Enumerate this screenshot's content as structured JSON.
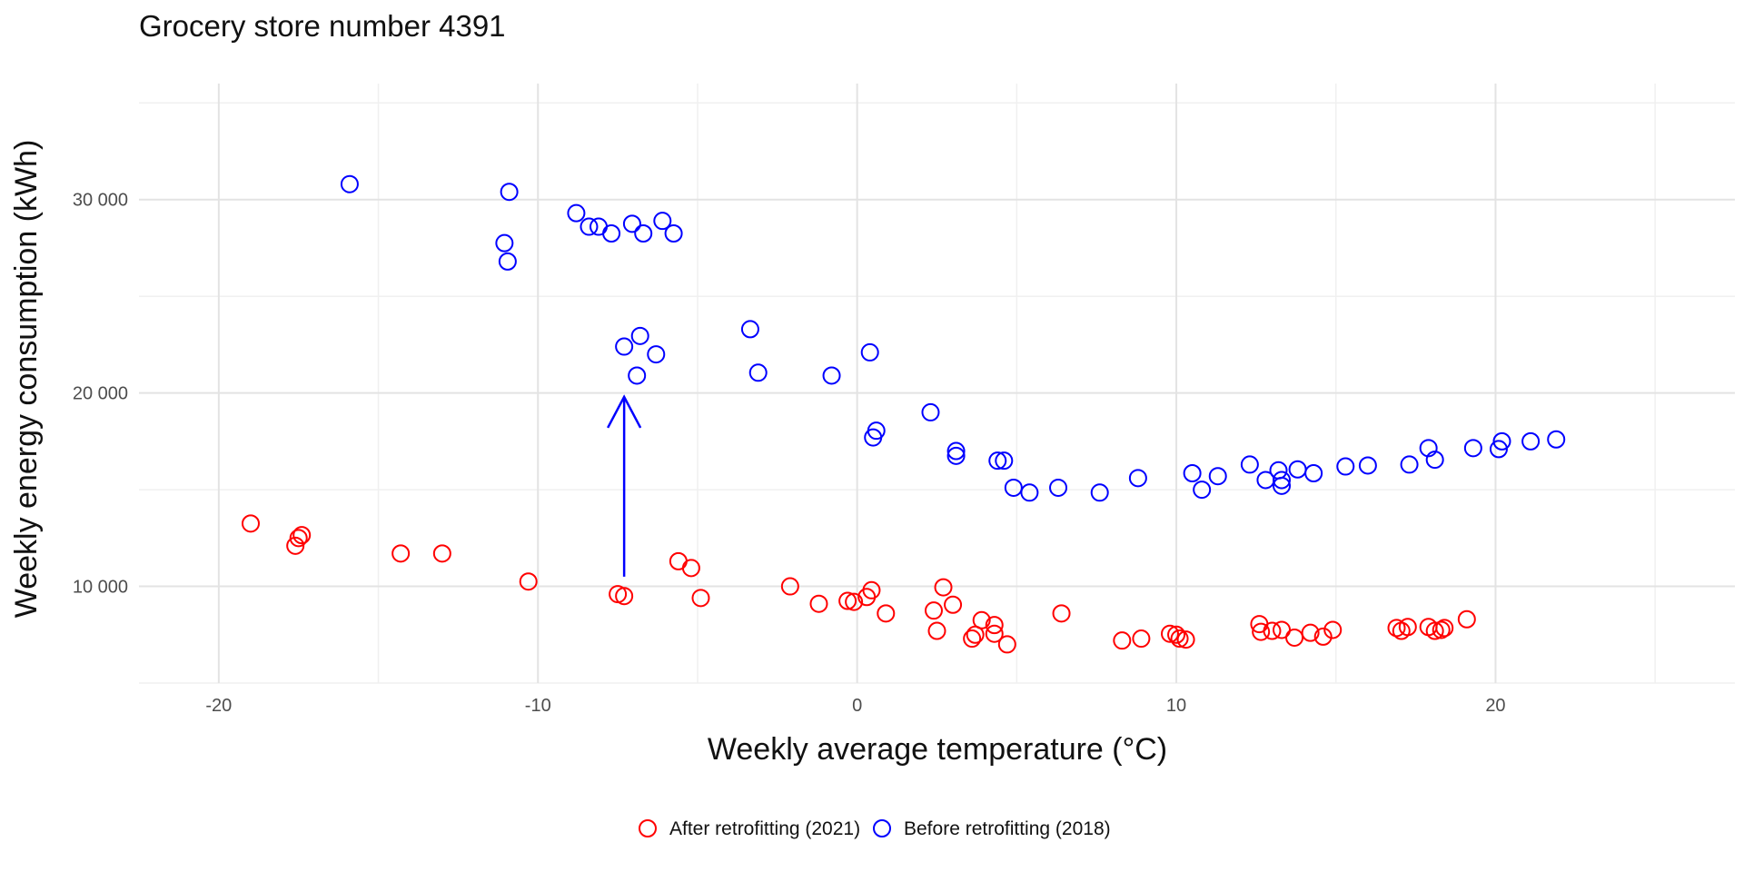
{
  "chart_data": {
    "type": "scatter",
    "title": "Grocery store number 4391",
    "xlabel": "Weekly average temperature (°C)",
    "ylabel": "Weekly energy consumption (kWh)",
    "xlim": [
      -22.5,
      27.5
    ],
    "ylim": [
      5000,
      36000
    ],
    "x_ticks": [
      -20,
      -10,
      0,
      10,
      20
    ],
    "x_tick_labels": [
      "-20",
      "-10",
      "0",
      "10",
      "20"
    ],
    "y_ticks": [
      10000,
      20000,
      30000
    ],
    "y_tick_labels": [
      "10 000",
      "20 000",
      "30 000"
    ],
    "grid": true,
    "legend_position": "bottom",
    "annotation": {
      "type": "arrow",
      "x": -7.3,
      "y_from": 10500,
      "y_to": 19800,
      "color": "#0000ff"
    },
    "series": [
      {
        "name": "After retrofitting (2021)",
        "color": "#ff0000",
        "points": [
          [
            -19.0,
            13250
          ],
          [
            -17.6,
            12100
          ],
          [
            -17.5,
            12500
          ],
          [
            -17.4,
            12650
          ],
          [
            -14.3,
            11700
          ],
          [
            -13.0,
            11700
          ],
          [
            -10.3,
            10250
          ],
          [
            -7.5,
            9600
          ],
          [
            -7.3,
            9500
          ],
          [
            -5.6,
            11300
          ],
          [
            -5.2,
            10950
          ],
          [
            -4.9,
            9400
          ],
          [
            -2.1,
            10000
          ],
          [
            -1.2,
            9100
          ],
          [
            -0.3,
            9250
          ],
          [
            -0.1,
            9200
          ],
          [
            0.3,
            9450
          ],
          [
            0.45,
            9800
          ],
          [
            0.9,
            8600
          ],
          [
            2.4,
            8750
          ],
          [
            2.5,
            7700
          ],
          [
            2.7,
            9950
          ],
          [
            3.0,
            9050
          ],
          [
            3.6,
            7300
          ],
          [
            3.7,
            7500
          ],
          [
            3.9,
            8250
          ],
          [
            4.3,
            8000
          ],
          [
            4.3,
            7550
          ],
          [
            4.7,
            7000
          ],
          [
            6.4,
            8600
          ],
          [
            8.3,
            7200
          ],
          [
            8.9,
            7300
          ],
          [
            9.8,
            7550
          ],
          [
            10.0,
            7500
          ],
          [
            10.1,
            7300
          ],
          [
            10.3,
            7250
          ],
          [
            12.6,
            8050
          ],
          [
            12.65,
            7650
          ],
          [
            13.0,
            7700
          ],
          [
            13.3,
            7750
          ],
          [
            13.7,
            7350
          ],
          [
            14.2,
            7600
          ],
          [
            14.6,
            7400
          ],
          [
            14.9,
            7750
          ],
          [
            16.9,
            7850
          ],
          [
            17.05,
            7700
          ],
          [
            17.25,
            7900
          ],
          [
            17.9,
            7900
          ],
          [
            18.1,
            7700
          ],
          [
            18.3,
            7750
          ],
          [
            18.4,
            7850
          ],
          [
            19.1,
            8300
          ]
        ]
      },
      {
        "name": "Before retrofitting (2018)",
        "color": "#0000ff",
        "points": [
          [
            -15.9,
            30800
          ],
          [
            -10.9,
            30400
          ],
          [
            -11.05,
            27750
          ],
          [
            -10.95,
            26800
          ],
          [
            -8.8,
            29300
          ],
          [
            -8.4,
            28600
          ],
          [
            -8.1,
            28600
          ],
          [
            -7.7,
            28250
          ],
          [
            -7.05,
            28750
          ],
          [
            -6.7,
            28250
          ],
          [
            -6.1,
            28900
          ],
          [
            -5.75,
            28250
          ],
          [
            -7.3,
            22400
          ],
          [
            -6.8,
            22950
          ],
          [
            -6.9,
            20900
          ],
          [
            -6.3,
            22000
          ],
          [
            -3.35,
            23300
          ],
          [
            -3.1,
            21050
          ],
          [
            -0.8,
            20900
          ],
          [
            0.4,
            22100
          ],
          [
            0.5,
            17700
          ],
          [
            0.6,
            18050
          ],
          [
            2.3,
            19000
          ],
          [
            3.1,
            17000
          ],
          [
            3.1,
            16750
          ],
          [
            4.4,
            16500
          ],
          [
            4.6,
            16500
          ],
          [
            4.9,
            15100
          ],
          [
            5.4,
            14850
          ],
          [
            6.3,
            15100
          ],
          [
            7.6,
            14850
          ],
          [
            8.8,
            15600
          ],
          [
            10.5,
            15850
          ],
          [
            10.8,
            15000
          ],
          [
            11.3,
            15700
          ],
          [
            12.3,
            16300
          ],
          [
            12.8,
            15500
          ],
          [
            13.2,
            16000
          ],
          [
            13.3,
            15500
          ],
          [
            13.3,
            15200
          ],
          [
            13.8,
            16050
          ],
          [
            14.3,
            15850
          ],
          [
            15.3,
            16200
          ],
          [
            16.0,
            16250
          ],
          [
            17.3,
            16300
          ],
          [
            17.9,
            17150
          ],
          [
            18.1,
            16550
          ],
          [
            19.3,
            17150
          ],
          [
            20.1,
            17100
          ],
          [
            20.2,
            17500
          ],
          [
            21.1,
            17500
          ],
          [
            21.9,
            17600
          ]
        ]
      }
    ]
  }
}
